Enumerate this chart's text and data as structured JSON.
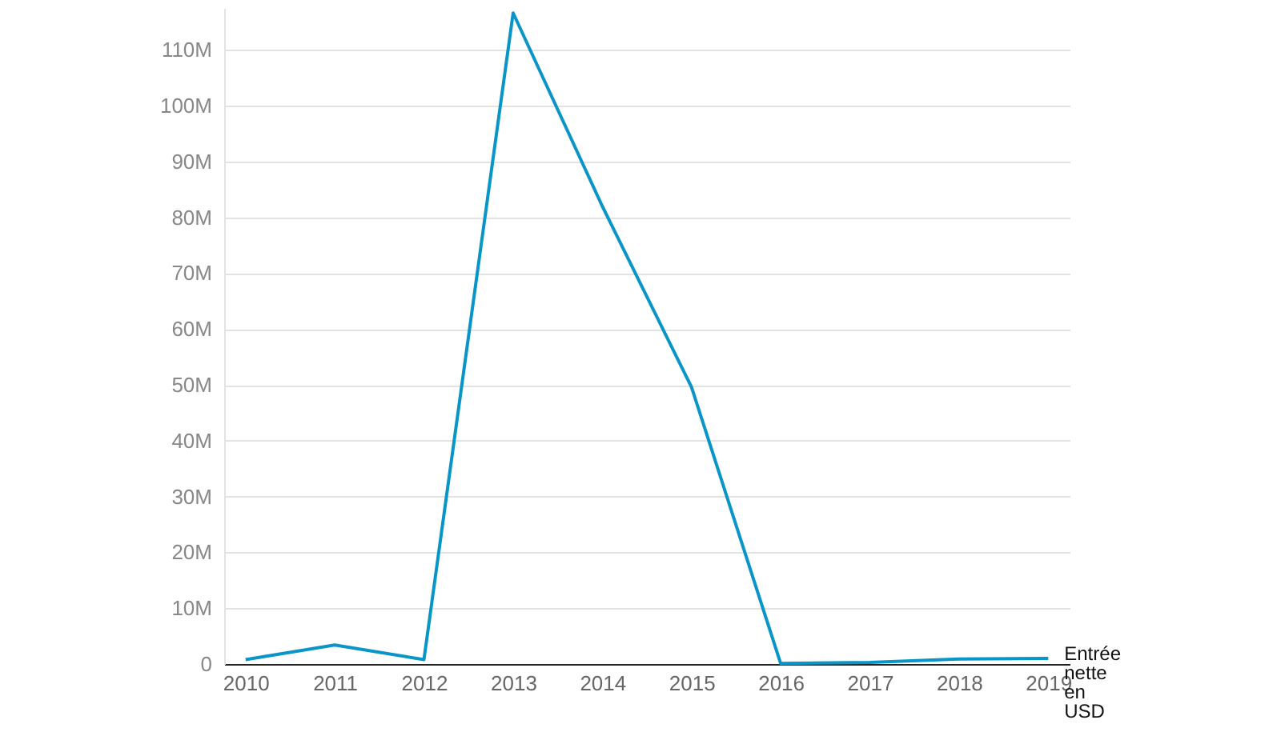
{
  "chart_data": {
    "type": "line",
    "categories": [
      "2010",
      "2011",
      "2012",
      "2013",
      "2014",
      "2015",
      "2016",
      "2017",
      "2018",
      "2019"
    ],
    "series": [
      {
        "name": "Entrée nette en USD",
        "color": "#0a95c9",
        "values": [
          800000,
          3400000,
          800000,
          116600000,
          82000000,
          49600000,
          100000,
          300000,
          900000,
          1000000
        ]
      }
    ],
    "ylim": [
      0,
      117500000
    ],
    "yticks": [
      {
        "value": 0,
        "label": "0"
      },
      {
        "value": 10000000,
        "label": "10M"
      },
      {
        "value": 20000000,
        "label": "20M"
      },
      {
        "value": 30000000,
        "label": "30M"
      },
      {
        "value": 40000000,
        "label": "40M"
      },
      {
        "value": 50000000,
        "label": "50M"
      },
      {
        "value": 60000000,
        "label": "60M"
      },
      {
        "value": 70000000,
        "label": "70M"
      },
      {
        "value": 80000000,
        "label": "80M"
      },
      {
        "value": 90000000,
        "label": "90M"
      },
      {
        "value": 100000000,
        "label": "100M"
      },
      {
        "value": 110000000,
        "label": "110M"
      }
    ],
    "grid": "y"
  }
}
